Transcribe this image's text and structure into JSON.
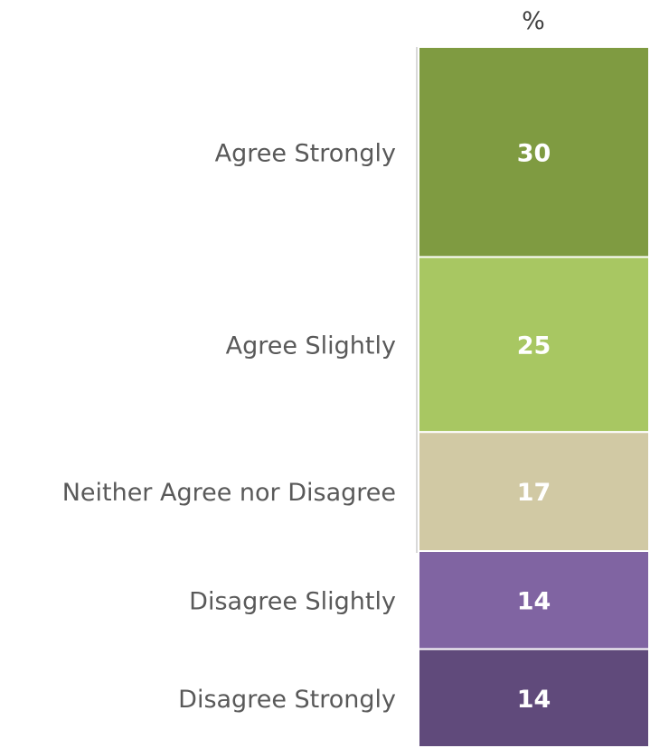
{
  "chart_data": {
    "type": "bar",
    "stacked": true,
    "orientation": "vertical",
    "title": "",
    "unit_label": "%",
    "xlabel": "",
    "ylabel": "",
    "categories": [
      "Agree Strongly",
      "Agree Slightly",
      "Neither Agree nor Disagree",
      "Disagree Slightly",
      "Disagree Strongly"
    ],
    "values": [
      30,
      25,
      17,
      14,
      14
    ],
    "colors": [
      "#7f9b41",
      "#a8c762",
      "#d1c9a4",
      "#8064a2",
      "#604a7b"
    ],
    "legend": "none",
    "grid": false
  }
}
